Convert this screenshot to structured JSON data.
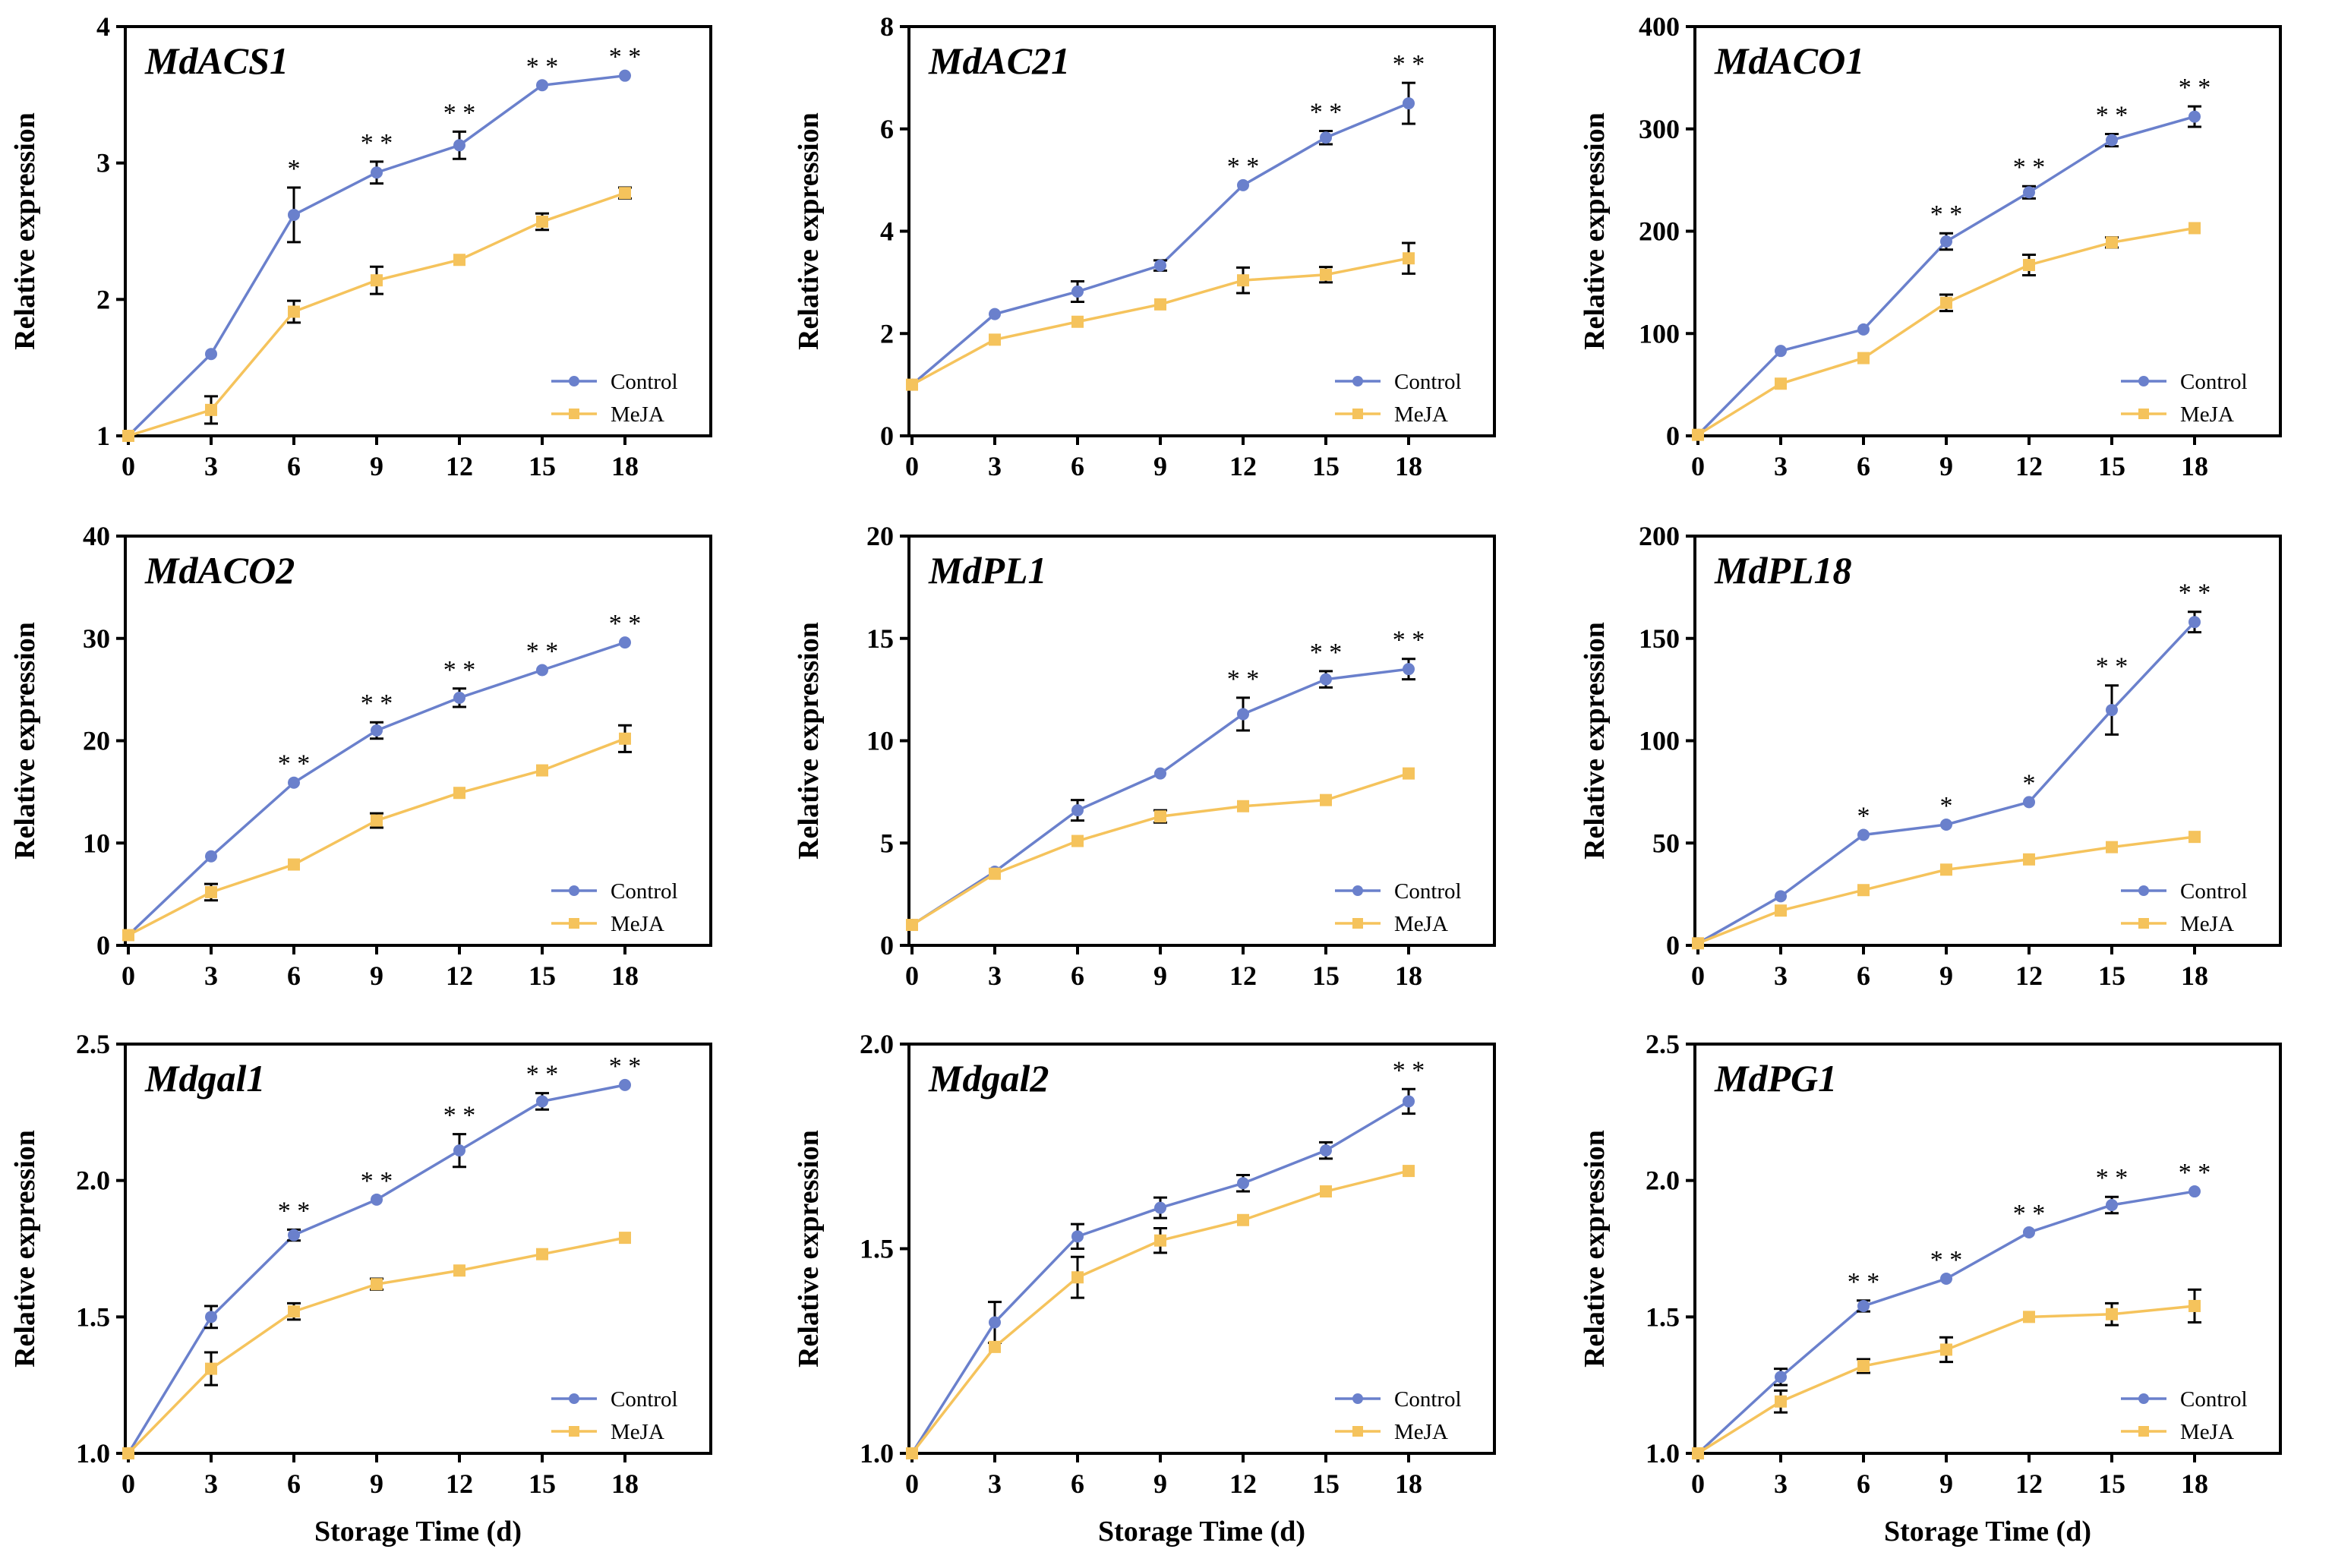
{
  "colors": {
    "control": "#6a80cc",
    "meja": "#f5c35c",
    "axis": "#000000"
  },
  "chart_data": [
    {
      "type": "line",
      "title": "MdACS1",
      "ylabel": "Relative expression",
      "xlabel": "",
      "x": [
        0,
        3,
        6,
        9,
        12,
        15,
        18
      ],
      "xticks": [
        "0",
        "3",
        "6",
        "9",
        "12",
        "15",
        "18"
      ],
      "ylim": [
        1,
        4
      ],
      "yticks": [
        "1",
        "2",
        "3",
        "4"
      ],
      "series": [
        {
          "name": "Control",
          "values": [
            1.0,
            1.6,
            2.62,
            2.93,
            3.13,
            3.57,
            3.64
          ],
          "errors": [
            0,
            0,
            0.2,
            0.08,
            0.1,
            0,
            0
          ]
        },
        {
          "name": "MeJA",
          "values": [
            1.0,
            1.19,
            1.91,
            2.14,
            2.29,
            2.57,
            2.78
          ],
          "errors": [
            0,
            0.1,
            0.08,
            0.1,
            0,
            0.06,
            0.04
          ]
        }
      ],
      "significance": [
        "",
        "",
        "*",
        "* *",
        "* *",
        "* *",
        "* *"
      ],
      "legend": [
        "Control",
        "MeJA"
      ]
    },
    {
      "type": "line",
      "title": "MdAC21",
      "ylabel": "Relative expression",
      "xlabel": "",
      "x": [
        0,
        3,
        6,
        9,
        12,
        15,
        18
      ],
      "xticks": [
        "0",
        "3",
        "6",
        "9",
        "12",
        "15",
        "18"
      ],
      "ylim": [
        0,
        8
      ],
      "yticks": [
        "0",
        "2",
        "4",
        "6",
        "8"
      ],
      "series": [
        {
          "name": "Control",
          "values": [
            1.0,
            2.38,
            2.82,
            3.33,
            4.9,
            5.83,
            6.5
          ],
          "errors": [
            0,
            0,
            0.2,
            0.1,
            0,
            0.13,
            0.4
          ]
        },
        {
          "name": "MeJA",
          "values": [
            1.0,
            1.88,
            2.23,
            2.57,
            3.04,
            3.15,
            3.47
          ],
          "errors": [
            0,
            0,
            0,
            0,
            0.25,
            0.15,
            0.3
          ]
        }
      ],
      "significance": [
        "",
        "",
        "",
        "",
        "* *",
        "* *",
        "* *"
      ],
      "legend": [
        "Control",
        "MeJA"
      ]
    },
    {
      "type": "line",
      "title": "MdACO1",
      "ylabel": "Relative expression",
      "xlabel": "",
      "x": [
        0,
        3,
        6,
        9,
        12,
        15,
        18
      ],
      "xticks": [
        "0",
        "3",
        "6",
        "9",
        "12",
        "15",
        "18"
      ],
      "ylim": [
        0,
        400
      ],
      "yticks": [
        "0",
        "100",
        "200",
        "300",
        "400"
      ],
      "series": [
        {
          "name": "Control",
          "values": [
            1,
            83,
            104,
            190,
            238,
            289,
            312
          ],
          "errors": [
            0,
            0,
            0,
            8,
            6,
            6,
            10
          ]
        },
        {
          "name": "MeJA",
          "values": [
            1,
            51,
            76,
            130,
            167,
            189,
            203
          ],
          "errors": [
            0,
            0,
            0,
            8,
            10,
            5,
            0
          ]
        }
      ],
      "significance": [
        "",
        "",
        "",
        "* *",
        "* *",
        "* *",
        "* *"
      ],
      "legend": [
        "Control",
        "MeJA"
      ]
    },
    {
      "type": "line",
      "title": "MdACO2",
      "ylabel": "Relative expression",
      "xlabel": "",
      "x": [
        0,
        3,
        6,
        9,
        12,
        15,
        18
      ],
      "xticks": [
        "0",
        "3",
        "6",
        "9",
        "12",
        "15",
        "18"
      ],
      "ylim": [
        0,
        40
      ],
      "yticks": [
        "0",
        "10",
        "20",
        "30",
        "40"
      ],
      "series": [
        {
          "name": "Control",
          "values": [
            1.0,
            8.7,
            15.9,
            21.0,
            24.2,
            26.9,
            29.6
          ],
          "errors": [
            0,
            0,
            0,
            0.8,
            0.9,
            0,
            0
          ]
        },
        {
          "name": "MeJA",
          "values": [
            1.0,
            5.2,
            7.9,
            12.2,
            14.9,
            17.1,
            20.2
          ],
          "errors": [
            0,
            0.8,
            0,
            0.7,
            0,
            0,
            1.3
          ]
        }
      ],
      "significance": [
        "",
        "",
        "* *",
        "* *",
        "* *",
        "* *",
        "* *"
      ],
      "legend": [
        "Control",
        "MeJA"
      ]
    },
    {
      "type": "line",
      "title": "MdPL1",
      "ylabel": "Relative expression",
      "xlabel": "",
      "x": [
        0,
        3,
        6,
        9,
        12,
        15,
        18
      ],
      "xticks": [
        "0",
        "3",
        "6",
        "9",
        "12",
        "15",
        "18"
      ],
      "ylim": [
        0,
        20
      ],
      "yticks": [
        "0",
        "5",
        "10",
        "15",
        "20"
      ],
      "series": [
        {
          "name": "Control",
          "values": [
            1.0,
            3.6,
            6.6,
            8.4,
            11.3,
            13.0,
            13.5
          ],
          "errors": [
            0,
            0,
            0.5,
            0,
            0.8,
            0.4,
            0.5
          ]
        },
        {
          "name": "MeJA",
          "values": [
            1.0,
            3.5,
            5.1,
            6.3,
            6.8,
            7.1,
            8.4
          ],
          "errors": [
            0,
            0,
            0,
            0.3,
            0,
            0,
            0
          ]
        }
      ],
      "significance": [
        "",
        "",
        "",
        "",
        "* *",
        "* *",
        "* *"
      ],
      "legend": [
        "Control",
        "MeJA"
      ]
    },
    {
      "type": "line",
      "title": "MdPL18",
      "ylabel": "Relative expression",
      "xlabel": "",
      "x": [
        0,
        3,
        6,
        9,
        12,
        15,
        18
      ],
      "xticks": [
        "0",
        "3",
        "6",
        "9",
        "12",
        "15",
        "18"
      ],
      "ylim": [
        0,
        200
      ],
      "yticks": [
        "0",
        "50",
        "100",
        "150",
        "200"
      ],
      "series": [
        {
          "name": "Control",
          "values": [
            1,
            24,
            54,
            59,
            70,
            115,
            158
          ],
          "errors": [
            0,
            0,
            0,
            0,
            0,
            12,
            5
          ]
        },
        {
          "name": "MeJA",
          "values": [
            1,
            17,
            27,
            37,
            42,
            48,
            53
          ],
          "errors": [
            0,
            0,
            0,
            0,
            0,
            0,
            0
          ]
        }
      ],
      "significance": [
        "",
        "",
        "*",
        "*",
        "*",
        "* *",
        "* *"
      ],
      "legend": [
        "Control",
        "MeJA"
      ]
    },
    {
      "type": "line",
      "title": "Mdgal1",
      "ylabel": "Relative expression",
      "xlabel": "Storage Time (d)",
      "x": [
        0,
        3,
        6,
        9,
        12,
        15,
        18
      ],
      "xticks": [
        "0",
        "3",
        "6",
        "9",
        "12",
        "15",
        "18"
      ],
      "ylim": [
        1.0,
        2.5
      ],
      "yticks": [
        "1.0",
        "1.5",
        "2.0",
        "2.5"
      ],
      "series": [
        {
          "name": "Control",
          "values": [
            1.0,
            1.5,
            1.8,
            1.93,
            2.11,
            2.29,
            2.35
          ],
          "errors": [
            0,
            0.04,
            0.02,
            0,
            0.06,
            0.03,
            0
          ]
        },
        {
          "name": "MeJA",
          "values": [
            1.0,
            1.31,
            1.52,
            1.62,
            1.67,
            1.73,
            1.79
          ],
          "errors": [
            0,
            0.06,
            0.03,
            0.02,
            0,
            0,
            0
          ]
        }
      ],
      "significance": [
        "",
        "",
        "* *",
        "* *",
        "* *",
        "* *",
        "* *"
      ],
      "legend": [
        "Control",
        "MeJA"
      ]
    },
    {
      "type": "line",
      "title": "Mdgal2",
      "ylabel": "Relative expression",
      "xlabel": "Storage Time (d)",
      "x": [
        0,
        3,
        6,
        9,
        12,
        15,
        18
      ],
      "xticks": [
        "0",
        "3",
        "6",
        "9",
        "12",
        "15",
        "18"
      ],
      "ylim": [
        1.0,
        2.0
      ],
      "yticks": [
        "1.0",
        "1.5",
        "2.0"
      ],
      "series": [
        {
          "name": "Control",
          "values": [
            1.0,
            1.32,
            1.53,
            1.6,
            1.66,
            1.74,
            1.86
          ],
          "errors": [
            0,
            0.05,
            0.03,
            0.025,
            0.02,
            0.02,
            0.03
          ]
        },
        {
          "name": "MeJA",
          "values": [
            1.0,
            1.26,
            1.43,
            1.52,
            1.57,
            1.64,
            1.69
          ],
          "errors": [
            0,
            0,
            0.05,
            0.03,
            0,
            0,
            0
          ]
        }
      ],
      "significance": [
        "",
        "",
        "",
        "",
        "",
        "",
        "* *"
      ],
      "legend": [
        "Control",
        "MeJA"
      ]
    },
    {
      "type": "line",
      "title": "MdPG1",
      "ylabel": "Relative expression",
      "xlabel": "Storage Time (d)",
      "x": [
        0,
        3,
        6,
        9,
        12,
        15,
        18
      ],
      "xticks": [
        "0",
        "3",
        "6",
        "9",
        "12",
        "15",
        "18"
      ],
      "ylim": [
        1.0,
        2.5
      ],
      "yticks": [
        "1.0",
        "1.5",
        "2.0",
        "2.5"
      ],
      "series": [
        {
          "name": "Control",
          "values": [
            1.0,
            1.28,
            1.54,
            1.64,
            1.81,
            1.91,
            1.96
          ],
          "errors": [
            0,
            0.03,
            0.02,
            0,
            0,
            0.03,
            0
          ]
        },
        {
          "name": "MeJA",
          "values": [
            1.0,
            1.19,
            1.32,
            1.38,
            1.5,
            1.51,
            1.54
          ],
          "errors": [
            0,
            0.04,
            0.025,
            0.045,
            0,
            0.04,
            0.06
          ]
        }
      ],
      "significance": [
        "",
        "",
        "* *",
        "* *",
        "* *",
        "* *",
        "* *"
      ],
      "legend": [
        "Control",
        "MeJA"
      ]
    }
  ]
}
